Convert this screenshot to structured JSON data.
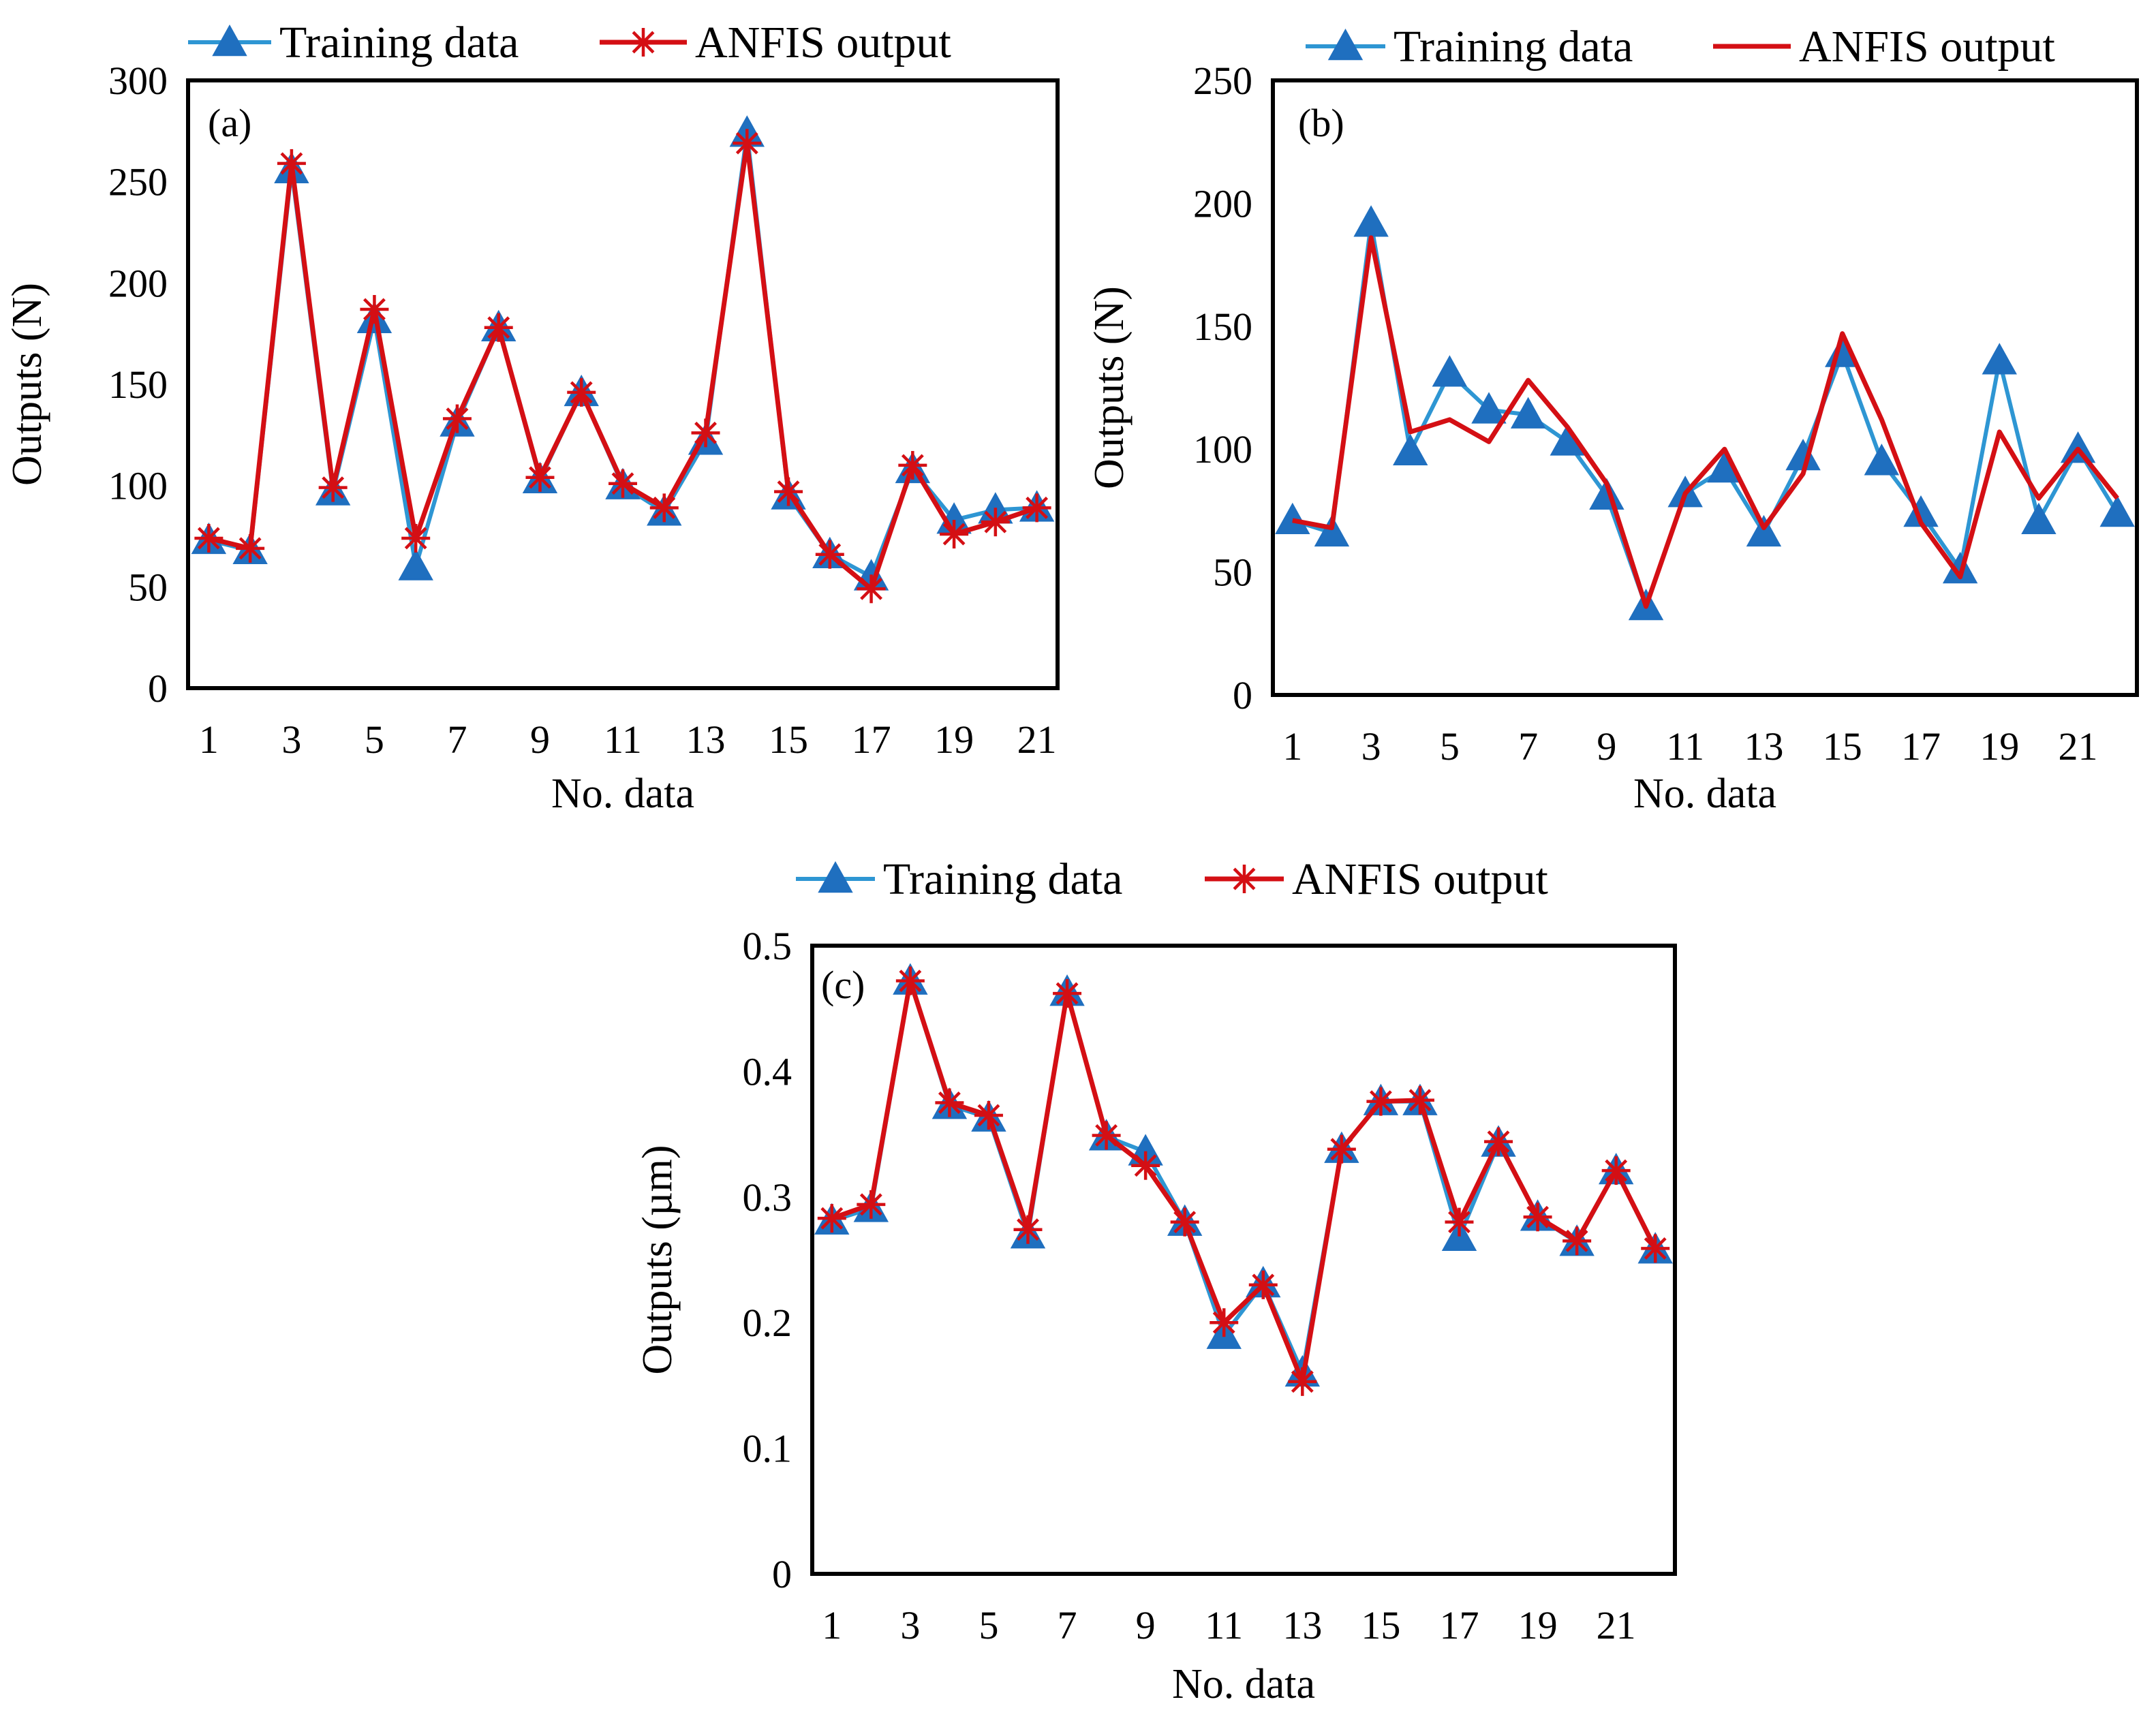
{
  "chart_data": [
    {
      "type": "line",
      "panel_label": "(a)",
      "xlabel": "No. data",
      "ylabel": "Outputs (N)",
      "ylim": [
        0,
        300
      ],
      "yticks": [
        "0",
        "50",
        "100",
        "150",
        "200",
        "250",
        "300"
      ],
      "xticks": [
        "1",
        "3",
        "5",
        "7",
        "9",
        "11",
        "13",
        "15",
        "17",
        "19",
        "21"
      ],
      "x": [
        1,
        2,
        3,
        4,
        5,
        6,
        7,
        8,
        9,
        10,
        11,
        12,
        13,
        14,
        15,
        16,
        17,
        18,
        19,
        20,
        21
      ],
      "grid": false,
      "legend_position": "top",
      "series": [
        {
          "name": "Training data",
          "marker": "triangle",
          "color": "#2e96d3",
          "marker_color": "#1f6fbf",
          "values": [
            73,
            68,
            256,
            97,
            182,
            60,
            131,
            178,
            103,
            146,
            100,
            87,
            122,
            274,
            95,
            66,
            55,
            108,
            83,
            88,
            89
          ]
        },
        {
          "name": "ANFIS output",
          "marker": "asterisk",
          "color": "#d40f14",
          "values": [
            74,
            69,
            259,
            99,
            187,
            74,
            133,
            178,
            104,
            146,
            101,
            89,
            126,
            269,
            97,
            66,
            49,
            110,
            76,
            82,
            89
          ]
        }
      ]
    },
    {
      "type": "line",
      "panel_label": "(b)",
      "xlabel": "No. data",
      "ylabel": "Outputs (N)",
      "ylim": [
        0,
        250
      ],
      "yticks": [
        "0",
        "50",
        "100",
        "150",
        "200",
        "250"
      ],
      "xticks": [
        "1",
        "3",
        "5",
        "7",
        "9",
        "11",
        "13",
        "15",
        "17",
        "19",
        "21"
      ],
      "x": [
        1,
        2,
        3,
        4,
        5,
        6,
        7,
        8,
        9,
        10,
        11,
        12,
        13,
        14,
        15,
        16,
        17,
        18,
        19,
        20,
        21,
        22
      ],
      "grid": false,
      "legend_position": "top",
      "series": [
        {
          "name": "Training data",
          "marker": "triangle",
          "color": "#2e96d3",
          "marker_color": "#1f6fbf",
          "values": [
            71,
            66,
            192,
            99,
            131,
            116,
            114,
            103,
            81,
            36,
            82,
            92,
            66,
            97,
            139,
            95,
            74,
            51,
            136,
            71,
            100,
            74
          ]
        },
        {
          "name": "ANFIS output",
          "marker": "none",
          "color": "#d40f14",
          "values": [
            71,
            68,
            186,
            107,
            112,
            103,
            128,
            109,
            86,
            36,
            82,
            100,
            68,
            90,
            147,
            112,
            70,
            48,
            107,
            80,
            100,
            80
          ]
        }
      ]
    },
    {
      "type": "line",
      "panel_label": "(c)",
      "xlabel": "No. data",
      "ylabel": "Outputs (µm)",
      "ylim": [
        0,
        0.5
      ],
      "yticks": [
        "0",
        "0.1",
        "0.2",
        "0.3",
        "0.4",
        "0.5"
      ],
      "xticks": [
        "1",
        "3",
        "5",
        "7",
        "9",
        "11",
        "13",
        "15",
        "17",
        "19",
        "21"
      ],
      "x": [
        1,
        2,
        3,
        4,
        5,
        6,
        7,
        8,
        9,
        10,
        11,
        12,
        13,
        14,
        15,
        16,
        17,
        18,
        19,
        20,
        21,
        22
      ],
      "grid": false,
      "legend_position": "top",
      "series": [
        {
          "name": "Training data",
          "marker": "triangle",
          "color": "#2e96d3",
          "marker_color": "#1f6fbf",
          "values": [
            0.281,
            0.291,
            0.472,
            0.373,
            0.363,
            0.27,
            0.463,
            0.348,
            0.336,
            0.28,
            0.19,
            0.231,
            0.16,
            0.338,
            0.376,
            0.376,
            0.268,
            0.343,
            0.284,
            0.264,
            0.321,
            0.258
          ]
        },
        {
          "name": "ANFIS output",
          "marker": "asterisk",
          "color": "#d40f14",
          "values": [
            0.283,
            0.294,
            0.472,
            0.375,
            0.365,
            0.274,
            0.462,
            0.349,
            0.325,
            0.28,
            0.2,
            0.23,
            0.153,
            0.338,
            0.376,
            0.377,
            0.28,
            0.344,
            0.284,
            0.265,
            0.321,
            0.259
          ]
        }
      ]
    }
  ]
}
